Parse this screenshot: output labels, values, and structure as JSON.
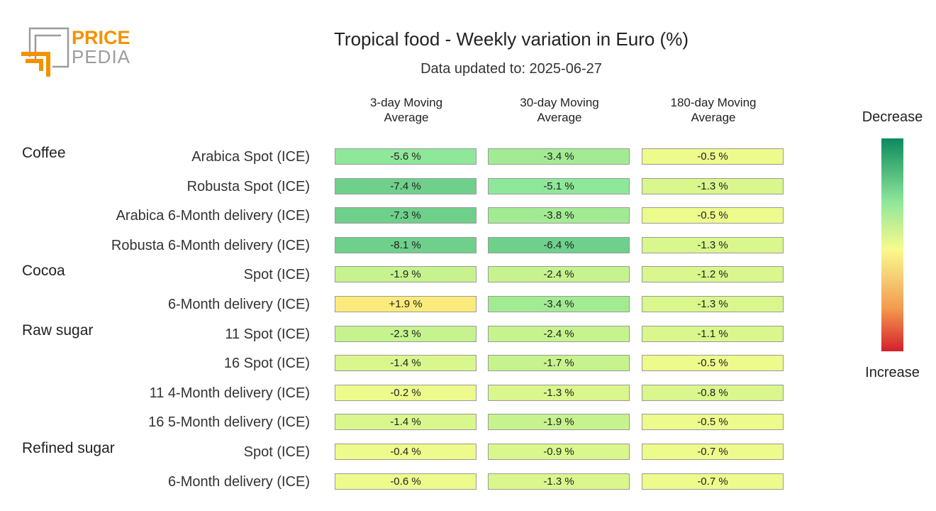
{
  "logo": {
    "line1": "PRICE",
    "line2": "PEDIA",
    "colors": {
      "orange": "#f39200",
      "gray": "#9c9c9c"
    }
  },
  "title": "Tropical food - Weekly variation in Euro (%)",
  "subtitle": "Data updated to: 2025-06-27",
  "legend": {
    "top": "Decrease",
    "bottom": "Increase"
  },
  "chart_data": {
    "type": "heatmap",
    "columns": [
      "3-day Moving Average",
      "30-day Moving Average",
      "180-day Moving Average"
    ],
    "column_lines": [
      [
        "3-day Moving",
        "Average"
      ],
      [
        "30-day Moving",
        "Average"
      ],
      [
        "180-day Moving",
        "Average"
      ]
    ],
    "unit": "%",
    "groups": [
      {
        "name": "Coffee",
        "start_row": 0
      },
      {
        "name": "Cocoa",
        "start_row": 4
      },
      {
        "name": "Raw sugar",
        "start_row": 6
      },
      {
        "name": "Refined sugar",
        "start_row": 10
      }
    ],
    "rows": [
      {
        "label": "Arabica Spot (ICE)",
        "values": [
          -5.6,
          -3.4,
          -0.5
        ]
      },
      {
        "label": "Robusta Spot (ICE)",
        "values": [
          -7.4,
          -5.1,
          -1.3
        ]
      },
      {
        "label": "Arabica 6-Month delivery (ICE)",
        "values": [
          -7.3,
          -3.8,
          -0.5
        ]
      },
      {
        "label": "Robusta 6-Month delivery (ICE)",
        "values": [
          -8.1,
          -6.4,
          -1.3
        ]
      },
      {
        "label": "Spot (ICE)",
        "values": [
          -1.9,
          -2.4,
          -1.2
        ]
      },
      {
        "label": "6-Month delivery (ICE)",
        "values": [
          1.9,
          -3.4,
          -1.3
        ]
      },
      {
        "label": "11 Spot (ICE)",
        "values": [
          -2.3,
          -2.4,
          -1.1
        ]
      },
      {
        "label": "16 Spot (ICE)",
        "values": [
          -1.4,
          -1.7,
          -0.5
        ]
      },
      {
        "label": "11 4-Month delivery (ICE)",
        "values": [
          -0.2,
          -1.3,
          -0.8
        ]
      },
      {
        "label": "16 5-Month delivery (ICE)",
        "values": [
          -1.4,
          -1.9,
          -0.5
        ]
      },
      {
        "label": "Spot (ICE)",
        "values": [
          -0.4,
          -0.9,
          -0.7
        ]
      },
      {
        "label": "6-Month delivery (ICE)",
        "values": [
          -0.6,
          -1.3,
          -0.7
        ]
      }
    ],
    "cell_labels": [
      [
        "-5.6 %",
        "-3.4 %",
        "-0.5 %"
      ],
      [
        "-7.4 %",
        "-5.1 %",
        "-1.3 %"
      ],
      [
        "-7.3 %",
        "-3.8 %",
        "-0.5 %"
      ],
      [
        "-8.1 %",
        "-6.4 %",
        "-1.3 %"
      ],
      [
        "-1.9 %",
        "-2.4 %",
        "-1.2 %"
      ],
      [
        "+1.9 %",
        "-3.4 %",
        "-1.3 %"
      ],
      [
        "-2.3 %",
        "-2.4 %",
        "-1.1 %"
      ],
      [
        "-1.4 %",
        "-1.7 %",
        "-0.5 %"
      ],
      [
        "-0.2 %",
        "-1.3 %",
        "-0.8 %"
      ],
      [
        "-1.4 %",
        "-1.9 %",
        "-0.5 %"
      ],
      [
        "-0.4 %",
        "-0.9 %",
        "-0.7 %"
      ],
      [
        "-0.6 %",
        "-1.3 %",
        "-0.7 %"
      ]
    ],
    "color_scale": {
      "decrease": "#0c8a5d",
      "mid_green": "#8fe79a",
      "neutral": "#f8fb8c",
      "orange": "#f39a4d",
      "increase": "#d51f2b"
    }
  }
}
